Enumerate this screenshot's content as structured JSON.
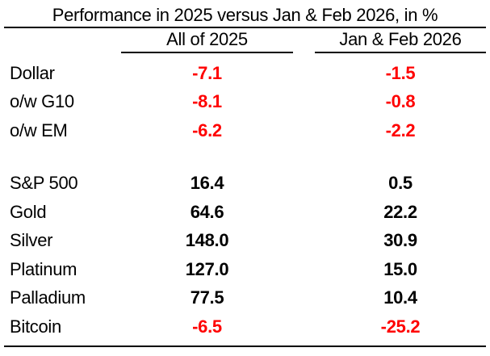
{
  "colors": {
    "negative_value": "#ff0000",
    "positive_value": "#000000",
    "background": "#ffffff",
    "rule": "#000000"
  },
  "chart_data": {
    "type": "table",
    "title": "Performance in 2025 versus Jan & Feb 2026, in %",
    "columns": [
      "All of 2025",
      "Jan & Feb 2026"
    ],
    "unit": "%",
    "rows": [
      {
        "label": "Dollar",
        "values": [
          "-7.1",
          "-1.5"
        ]
      },
      {
        "label": "o/w G10",
        "values": [
          "-8.1",
          "-0.8"
        ]
      },
      {
        "label": "o/w EM",
        "values": [
          "-6.2",
          "-2.2"
        ]
      },
      {
        "label": "S&P 500",
        "values": [
          "16.4",
          "0.5"
        ]
      },
      {
        "label": "Gold",
        "values": [
          "64.6",
          "22.2"
        ]
      },
      {
        "label": "Silver",
        "values": [
          "148.0",
          "30.9"
        ]
      },
      {
        "label": "Platinum",
        "values": [
          "127.0",
          "15.0"
        ]
      },
      {
        "label": "Palladium",
        "values": [
          "77.5",
          "10.4"
        ]
      },
      {
        "label": "Bitcoin",
        "values": [
          "-6.5",
          "-25.2"
        ]
      }
    ],
    "layout": {
      "group_break_after_row_index": 2,
      "value_alignment": "center",
      "negative_values_in_red": true
    }
  }
}
